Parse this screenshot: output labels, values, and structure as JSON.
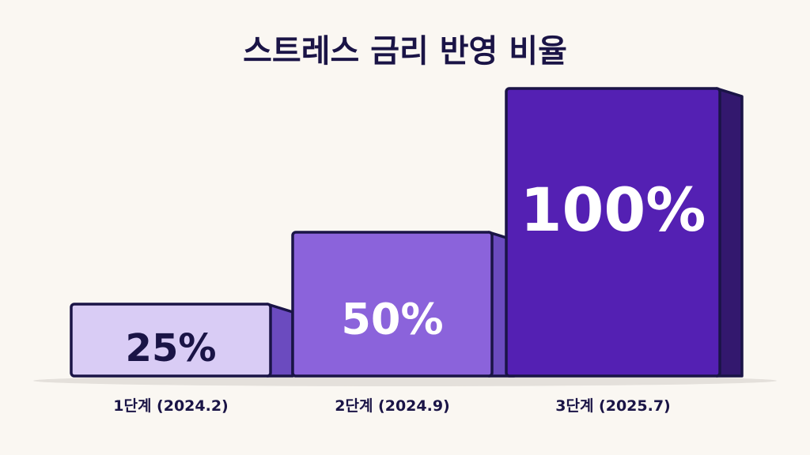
{
  "chart_data": {
    "type": "bar",
    "title": "스트레스 금리 반영 비율",
    "categories": [
      "1단계 (2024.2)",
      "2단계 (2024.9)",
      "3단계 (2025.7)"
    ],
    "values": [
      25,
      50,
      100
    ],
    "value_labels": [
      "25%",
      "50%",
      "100%"
    ],
    "ylim": [
      0,
      100
    ],
    "xlabel": "",
    "ylabel": "",
    "grid": false,
    "colors": {
      "bars": [
        "#d9ccf5",
        "#8b63db",
        "#5420b3"
      ],
      "bar_sides": [
        "#6b4bbf",
        "#6b4bbf",
        "#33186e"
      ],
      "value_text": [
        "#1a1446",
        "#ffffff",
        "#ffffff"
      ],
      "outline": "#1a1446",
      "background": "#faf7f2"
    }
  }
}
